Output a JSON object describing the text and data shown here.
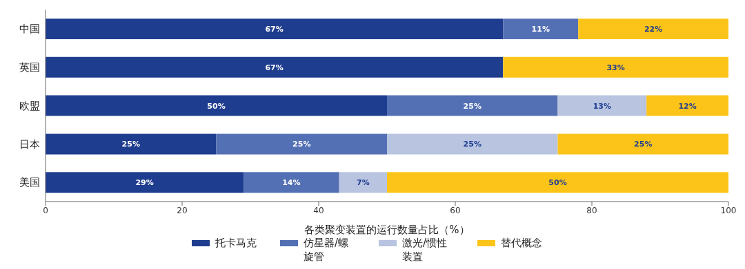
{
  "chart_data": {
    "type": "bar",
    "orientation": "horizontal",
    "stacked": true,
    "categories": [
      "中国",
      "英国",
      "欧盟",
      "日本",
      "美国"
    ],
    "series": [
      {
        "name": "托卡马克",
        "color": "#1f3d8f",
        "values": [
          67,
          67,
          50,
          25,
          29
        ],
        "value_labels": [
          "67%",
          "67%",
          "50%",
          "25%",
          "29%"
        ]
      },
      {
        "name": "仿星器/螺旋管",
        "color": "#5470b4",
        "values": [
          11,
          null,
          25,
          25,
          14
        ],
        "value_labels": [
          "11%",
          null,
          "25%",
          "25%",
          "14%"
        ]
      },
      {
        "name": "激光/惯性装置",
        "color": "#b8c4e0",
        "values": [
          null,
          null,
          13,
          25,
          7
        ],
        "value_labels": [
          null,
          null,
          "13%",
          "25%",
          "7%"
        ]
      },
      {
        "name": "替代概念",
        "color": "#fcc419",
        "values": [
          22,
          33,
          12,
          25,
          50
        ],
        "value_labels": [
          "22%",
          "33%",
          "12%",
          "25%",
          "50%"
        ]
      }
    ],
    "xlim": [
      0,
      100
    ],
    "xticks": [
      0,
      20,
      40,
      60,
      80,
      100
    ],
    "xlabel": "各类聚变装置的运行数量占比（%）",
    "legend": "bottom",
    "grid": false
  }
}
